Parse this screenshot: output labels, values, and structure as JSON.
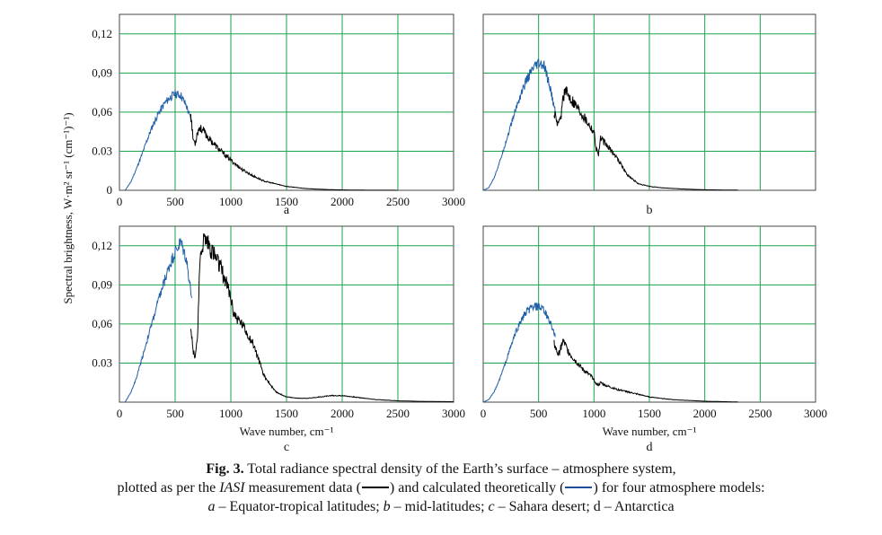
{
  "ylabel": "Spectral brightness, W·m² sr⁻¹  (cm⁻¹)⁻¹)",
  "xlabel": "Wave number, cm⁻¹",
  "colors": {
    "grid": "#1aa34a",
    "measured": "#000000",
    "calculated": "#1f5fa8"
  },
  "caption": {
    "fig_label": "Fig. 3.",
    "line1": "Total radiance spectral density of the Earth’s surface – atmosphere system,",
    "line2_pre": "plotted as per the ",
    "line2_iasi": "IASI",
    "line2_mid": " measurement data (",
    "line2_mid2": ") and calculated theoretically (",
    "line2_post": ") for four atmosphere models:",
    "line3_a": "a",
    "line3_a_text": " – Equator-tropical latitudes; ",
    "line3_b": "b",
    "line3_b_text": " – mid-latitudes; ",
    "line3_c": "c",
    "line3_c_text": " – Sahara desert; d – Antarctica"
  },
  "chart_data": [
    {
      "panel": "a",
      "label": "a",
      "type": "line",
      "xlim": [
        0,
        3000
      ],
      "ylim": [
        0,
        0.135
      ],
      "xticks": [
        "0",
        "500",
        "1000",
        "1500",
        "2000",
        "2500",
        "3000"
      ],
      "yticks": [
        "0",
        "0.03",
        "0,06",
        "0,09",
        "0,12"
      ],
      "yticks_values": [
        0,
        0.03,
        0.06,
        0.09,
        0.12
      ],
      "grid": true,
      "series": [
        {
          "role": "calculated",
          "x": [
            50,
            100,
            150,
            200,
            250,
            300,
            350,
            400,
            450,
            500,
            550,
            600,
            650
          ],
          "y": [
            0,
            0.006,
            0.016,
            0.027,
            0.039,
            0.05,
            0.059,
            0.066,
            0.071,
            0.074,
            0.073,
            0.065,
            0.052
          ]
        },
        {
          "role": "measured",
          "x": [
            640,
            660,
            680,
            700,
            720,
            750,
            800,
            900,
            1000,
            1100,
            1200,
            1300,
            1400,
            1500,
            1600,
            1700,
            1800,
            1900,
            2000,
            2200,
            2400,
            2500
          ],
          "y": [
            0.06,
            0.04,
            0.036,
            0.045,
            0.048,
            0.046,
            0.04,
            0.031,
            0.023,
            0.016,
            0.011,
            0.007,
            0.005,
            0.003,
            0.002,
            0.0012,
            0.0008,
            0.0005,
            0.0003,
            0.0001,
            5e-05,
            3e-05
          ]
        }
      ]
    },
    {
      "panel": "b",
      "label": "b",
      "type": "line",
      "xlim": [
        0,
        3000
      ],
      "ylim": [
        0,
        0.135
      ],
      "xticks": [],
      "yticks": [],
      "yticks_values": [],
      "grid": true,
      "series": [
        {
          "role": "calculated",
          "x": [
            0,
            50,
            100,
            150,
            200,
            250,
            300,
            350,
            400,
            450,
            500,
            550,
            600,
            650
          ],
          "y": [
            0,
            0.002,
            0.01,
            0.022,
            0.036,
            0.05,
            0.064,
            0.076,
            0.086,
            0.093,
            0.097,
            0.095,
            0.08,
            0.06
          ]
        },
        {
          "role": "measured",
          "x": [
            640,
            660,
            680,
            700,
            720,
            740,
            760,
            800,
            900,
            1000,
            1020,
            1040,
            1060,
            1100,
            1200,
            1300,
            1400,
            1500,
            1600,
            1700,
            1800,
            2000,
            2200,
            2300
          ],
          "y": [
            0.06,
            0.053,
            0.05,
            0.055,
            0.072,
            0.076,
            0.074,
            0.07,
            0.058,
            0.045,
            0.032,
            0.028,
            0.04,
            0.036,
            0.026,
            0.012,
            0.005,
            0.003,
            0.002,
            0.0015,
            0.001,
            0.0004,
            0.0002,
            0.0001
          ]
        }
      ]
    },
    {
      "panel": "c",
      "label": "c",
      "type": "line",
      "xlim": [
        0,
        3000
      ],
      "ylim": [
        0,
        0.135
      ],
      "xticks": [
        "0",
        "500",
        "1000",
        "1500",
        "2000",
        "2500",
        "3000"
      ],
      "yticks": [
        "0.03",
        "0,06",
        "0,09",
        "0,12"
      ],
      "yticks_values": [
        0.03,
        0.06,
        0.09,
        0.12
      ],
      "grid": true,
      "series": [
        {
          "role": "calculated",
          "x": [
            50,
            100,
            150,
            200,
            250,
            300,
            350,
            400,
            450,
            500,
            550,
            600,
            650
          ],
          "y": [
            0,
            0.007,
            0.018,
            0.033,
            0.048,
            0.063,
            0.078,
            0.092,
            0.105,
            0.115,
            0.123,
            0.11,
            0.08
          ]
        },
        {
          "role": "measured",
          "x": [
            640,
            660,
            680,
            700,
            720,
            740,
            760,
            780,
            800,
            850,
            900,
            950,
            1000,
            1020,
            1050,
            1100,
            1200,
            1300,
            1400,
            1500,
            1600,
            1700,
            1800,
            1900,
            2000,
            2100,
            2200,
            2300,
            2500,
            2700,
            3000
          ],
          "y": [
            0.06,
            0.04,
            0.035,
            0.05,
            0.1,
            0.12,
            0.125,
            0.124,
            0.122,
            0.113,
            0.104,
            0.094,
            0.08,
            0.07,
            0.065,
            0.06,
            0.045,
            0.02,
            0.008,
            0.004,
            0.003,
            0.003,
            0.004,
            0.005,
            0.005,
            0.004,
            0.003,
            0.002,
            0.001,
            0.0006,
            0.0003
          ]
        }
      ]
    },
    {
      "panel": "d",
      "label": "d",
      "type": "line",
      "xlim": [
        0,
        3000
      ],
      "ylim": [
        0,
        0.135
      ],
      "xticks": [
        "0",
        "500",
        "1000",
        "1500",
        "2000",
        "2500",
        "3000"
      ],
      "yticks": [],
      "yticks_values": [],
      "grid": true,
      "series": [
        {
          "role": "calculated",
          "x": [
            0,
            50,
            100,
            150,
            200,
            250,
            300,
            350,
            400,
            450,
            500,
            550,
            600,
            650
          ],
          "y": [
            0,
            0.002,
            0.008,
            0.018,
            0.03,
            0.043,
            0.055,
            0.064,
            0.07,
            0.073,
            0.073,
            0.07,
            0.062,
            0.05
          ]
        },
        {
          "role": "measured",
          "x": [
            640,
            660,
            680,
            700,
            720,
            740,
            760,
            800,
            900,
            1000,
            1020,
            1040,
            1060,
            1100,
            1200,
            1300,
            1400,
            1500,
            1600,
            1700,
            1800,
            2000,
            2200,
            2300
          ],
          "y": [
            0.045,
            0.04,
            0.036,
            0.042,
            0.047,
            0.044,
            0.04,
            0.035,
            0.025,
            0.018,
            0.014,
            0.013,
            0.015,
            0.013,
            0.01,
            0.008,
            0.006,
            0.004,
            0.003,
            0.002,
            0.0015,
            0.0007,
            0.0003,
            0.0001
          ]
        }
      ]
    }
  ]
}
